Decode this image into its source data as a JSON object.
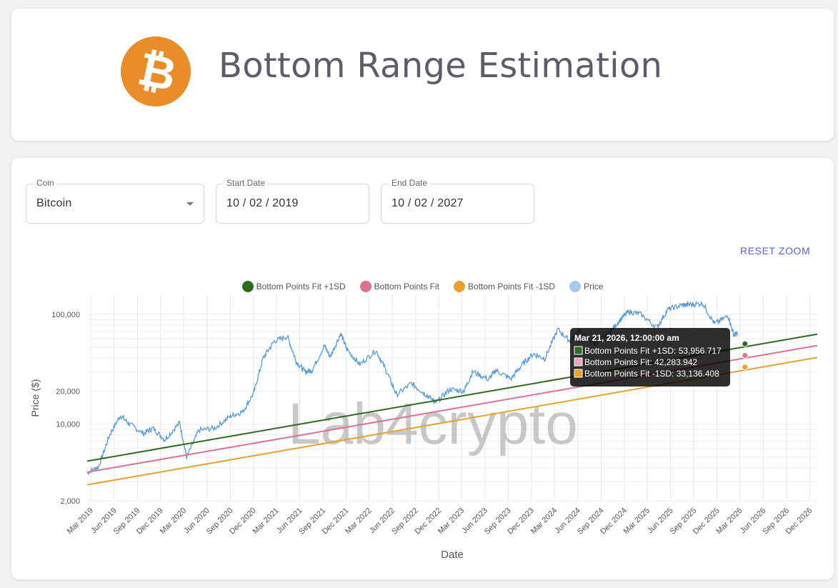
{
  "header": {
    "title": "Bottom Range Estimation",
    "logo_symbol": "₿",
    "logo_color": "#e98d2b"
  },
  "controls": {
    "coin": {
      "label": "Coin",
      "value": "Bitcoin"
    },
    "start_date": {
      "label": "Start Date",
      "value": "10 / 02 / 2019"
    },
    "end_date": {
      "label": "End Date",
      "value": "10 / 02 / 2027"
    },
    "reset_zoom_label": "RESET ZOOM"
  },
  "watermark": "Lab4crypto",
  "chart_data": {
    "type": "line",
    "y_scale": "log",
    "xlabel": "Date",
    "ylabel": "Price ($)",
    "x_range": [
      "2019-02-15",
      "2026-12-31"
    ],
    "ylim": [
      2000,
      150000
    ],
    "y_ticks": [
      2000,
      10000,
      20000,
      100000
    ],
    "y_tick_labels": [
      "2,000",
      "10,000",
      "20,000",
      "100,000"
    ],
    "x_tick_labels": [
      "Mar 2019",
      "Jun 2019",
      "Sep 2019",
      "Dec 2019",
      "Mar 2020",
      "Jun 2020",
      "Sep 2020",
      "Dec 2020",
      "Mar 2021",
      "Jun 2021",
      "Sep 2021",
      "Dec 2021",
      "Mar 2022",
      "Jun 2022",
      "Sep 2022",
      "Dec 2022",
      "Mar 2023",
      "Jun 2023",
      "Sep 2023",
      "Dec 2023",
      "Mar 2024",
      "Jun 2024",
      "Sep 2024",
      "Dec 2024",
      "Mar 2025",
      "Jun 2025",
      "Sep 2025",
      "Dec 2025",
      "Mar 2026",
      "Jun 2026",
      "Sep 2026",
      "Dec 2026"
    ],
    "series": [
      {
        "name": "Bottom Points Fit +1SD",
        "color": "#2e6b1f",
        "x": [
          "2019-02-15",
          "2026-12-31"
        ],
        "values": [
          4600,
          66000
        ]
      },
      {
        "name": "Bottom Points Fit",
        "color": "#e0718e",
        "x": [
          "2019-02-15",
          "2026-12-31"
        ],
        "values": [
          3650,
          52000
        ]
      },
      {
        "name": "Bottom Points Fit -1SD",
        "color": "#e8a030",
        "x": [
          "2019-02-15",
          "2026-12-31"
        ],
        "values": [
          2800,
          40500
        ]
      },
      {
        "name": "Price",
        "color": "#5b9bd9",
        "legend_color": "#a8c8ee",
        "x": [
          "2019-02-15",
          "2019-04-01",
          "2019-05-15",
          "2019-06-26",
          "2019-08-01",
          "2019-09-25",
          "2019-11-01",
          "2019-12-18",
          "2020-02-14",
          "2020-03-13",
          "2020-04-30",
          "2020-07-01",
          "2020-09-01",
          "2020-10-20",
          "2020-12-01",
          "2021-01-08",
          "2021-02-21",
          "2021-04-14",
          "2021-05-19",
          "2021-06-22",
          "2021-07-20",
          "2021-09-07",
          "2021-09-29",
          "2021-11-10",
          "2021-12-04",
          "2022-01-24",
          "2022-03-29",
          "2022-05-10",
          "2022-06-18",
          "2022-08-15",
          "2022-09-30",
          "2022-11-09",
          "2022-11-21",
          "2023-01-14",
          "2023-03-10",
          "2023-04-14",
          "2023-06-15",
          "2023-07-13",
          "2023-09-11",
          "2023-10-24",
          "2023-12-08",
          "2024-01-23",
          "2024-03-14",
          "2024-05-01",
          "2024-06-05",
          "2024-08-05",
          "2024-09-27",
          "2024-11-12",
          "2024-12-17",
          "2025-02-01",
          "2025-04-08",
          "2025-05-22",
          "2025-07-14",
          "2025-08-15",
          "2025-10-06",
          "2025-11-21",
          "2026-01-14",
          "2026-02-05",
          "2026-02-20"
        ],
        "values": [
          3600,
          4100,
          8000,
          12000,
          10000,
          8200,
          9200,
          7200,
          10300,
          5000,
          8800,
          9200,
          11800,
          13000,
          19000,
          40000,
          57000,
          63000,
          37000,
          30000,
          31000,
          52000,
          41000,
          67000,
          48000,
          35000,
          47000,
          30000,
          18500,
          23500,
          19500,
          16500,
          15800,
          20800,
          20000,
          30200,
          25500,
          31000,
          25800,
          34500,
          43800,
          39500,
          73000,
          57000,
          71000,
          54000,
          65800,
          88000,
          106000,
          101000,
          76000,
          111000,
          121000,
          123000,
          126000,
          82000,
          97000,
          65000,
          67000
        ]
      }
    ],
    "tooltip": {
      "title": "Mar 21, 2026, 12:00:00 am",
      "date": "2026-03-21",
      "rows": [
        {
          "label": "Bottom Points Fit +1SD: 53,956.717",
          "color": "#2e6b1f",
          "value": 53956.717
        },
        {
          "label": "Bottom Points Fit: 42,283.942",
          "color": "#e7a7b4",
          "value": 42283.942
        },
        {
          "label": "Bottom Points Fit -1SD: 33,136.408",
          "color": "#e8a030",
          "value": 33136.408
        }
      ]
    }
  }
}
